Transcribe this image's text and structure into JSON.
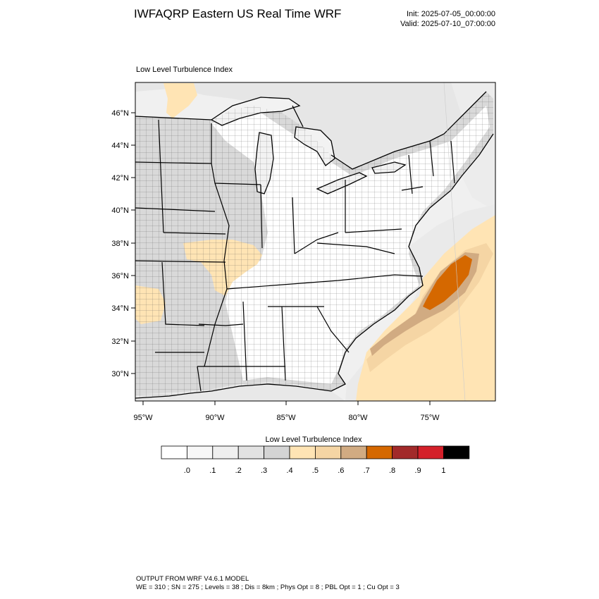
{
  "title": "IWFAQRP Eastern US Real Time WRF",
  "init": "Init: 2025-07-05_00:00:00",
  "valid": "Valid: 2025-07-10_07:00:00",
  "panel_label": "Low Level Turbulence Index",
  "map": {
    "lat_ticks": [
      "46°N",
      "44°N",
      "42°N",
      "40°N",
      "38°N",
      "36°N",
      "34°N",
      "32°N",
      "30°N"
    ],
    "lon_ticks": [
      "95°W",
      "90°W",
      "85°W",
      "80°W",
      "75°W"
    ],
    "land_color": "#e8e8e8",
    "water_color": "#f2f2f2"
  },
  "colorbar": {
    "title": "Low Level Turbulence Index",
    "labels": [
      ".0",
      ".1",
      ".2",
      ".3",
      ".4",
      ".5",
      ".6",
      ".7",
      ".8",
      ".9",
      "1"
    ],
    "colors": [
      "#ffffff",
      "#f7f7f7",
      "#efefef",
      "#e2e2e2",
      "#d4d4d4",
      "#ffe4b4",
      "#f5d5a4",
      "#d1ab82",
      "#d56800",
      "#a22a2a",
      "#d4202a",
      "#000000"
    ]
  },
  "footer": {
    "line1": "OUTPUT FROM WRF V4.6.1 MODEL",
    "line2": "WE = 310 ; SN = 275 ; Levels = 38 ; Dis = 8km ; Phys Opt = 8 ; PBL Opt = 1 ; Cu Opt = 3"
  }
}
